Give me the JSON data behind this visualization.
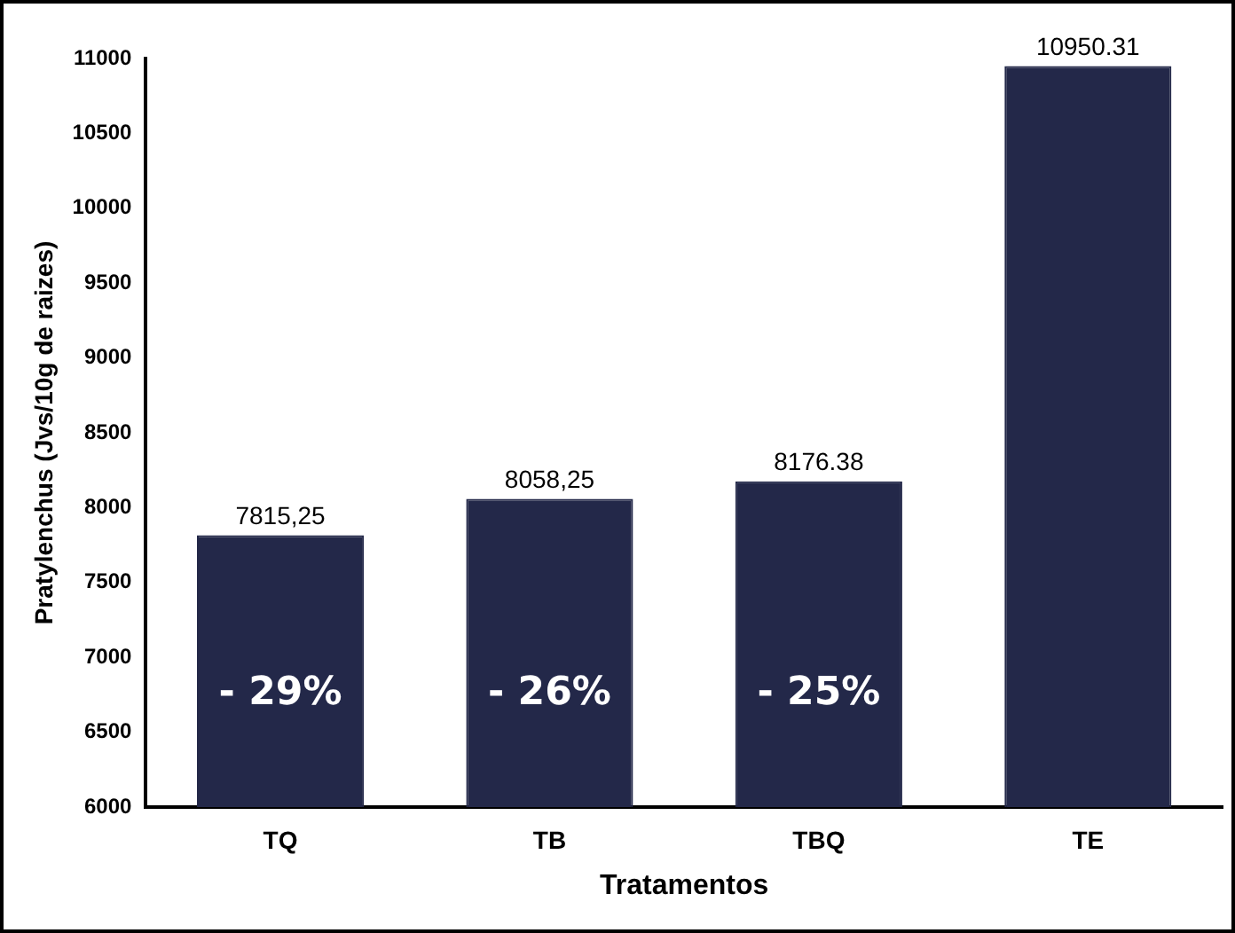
{
  "chart_data": {
    "type": "bar",
    "xlabel": "Tratamentos",
    "ylabel": "Pratylenchus (Jvs/10g de raizes)",
    "categories": [
      "TQ",
      "TB",
      "TBQ",
      "TE"
    ],
    "values": [
      7815.25,
      8058.25,
      8176.38,
      10950.31
    ],
    "value_labels": [
      "7815,25",
      "8058,25",
      "8176.38",
      "10950.31"
    ],
    "color": "#232849",
    "ylim": [
      6000,
      11000
    ],
    "yticks": [
      6000,
      6500,
      7000,
      7500,
      8000,
      8500,
      9000,
      9500,
      10000,
      10500,
      11000
    ],
    "annotations": [
      "- 29%",
      "- 26%",
      "- 25%"
    ]
  }
}
